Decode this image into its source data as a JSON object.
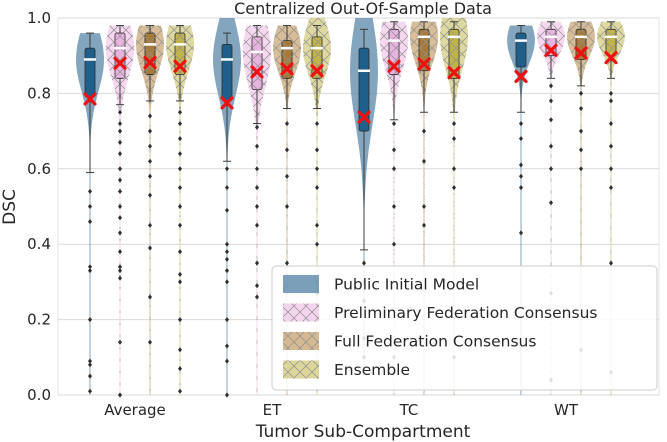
{
  "chart_data": {
    "type": "violin",
    "title": "Centralized Out-Of-Sample Data",
    "xlabel": "Tumor Sub-Compartment",
    "ylabel": "DSC",
    "ylim": [
      0.0,
      1.0
    ],
    "yticks": [
      "0.0",
      "0.2",
      "0.4",
      "0.6",
      "0.8",
      "1.0"
    ],
    "categories": [
      "Average",
      "ET",
      "TC",
      "WT"
    ],
    "grid": true,
    "legend_position": "lower-right",
    "series": [
      {
        "name": "Public Initial Model",
        "color": "#1f5f8b",
        "violin_color": "#5b87a8",
        "hatch": "none",
        "q1": [
          0.79,
          0.78,
          0.7,
          0.87
        ],
        "q3": [
          0.92,
          0.93,
          0.92,
          0.96
        ],
        "median": [
          0.89,
          0.89,
          0.86,
          0.94
        ],
        "mean": [
          0.785,
          0.775,
          0.737,
          0.845
        ],
        "whisker_low": [
          0.59,
          0.62,
          0.385,
          0.75
        ],
        "whisker_high": [
          0.96,
          0.96,
          0.97,
          0.98
        ],
        "range": [
          [
            0.0,
            0.96
          ],
          [
            0.0,
            1.0
          ],
          [
            0.05,
            1.0
          ],
          [
            0.0,
            0.98
          ]
        ],
        "outliers": [
          [
            0.54,
            0.5,
            0.46,
            0.34,
            0.33,
            0.2,
            0.09,
            0.08,
            0.05,
            0.01
          ],
          [
            0.6,
            0.55,
            0.49,
            0.4,
            0.38,
            0.36,
            0.33,
            0.3,
            0.2,
            0.13,
            0.09,
            0.0
          ],
          [
            0.35,
            0.3,
            0.25,
            0.15,
            0.1
          ],
          [
            0.72,
            0.68,
            0.61,
            0.58,
            0.55,
            0.43
          ]
        ]
      },
      {
        "name": "Preliminary Federation Consensus",
        "color": "#e8b3e0",
        "violin_color": "#f2cbe9",
        "hatch": "x",
        "q1": [
          0.84,
          0.81,
          0.85,
          0.9
        ],
        "q3": [
          0.96,
          0.95,
          0.97,
          0.97
        ],
        "median": [
          0.92,
          0.91,
          0.94,
          0.95
        ],
        "mean": [
          0.88,
          0.857,
          0.872,
          0.914
        ],
        "whisker_low": [
          0.77,
          0.72,
          0.73,
          0.84
        ],
        "whisker_high": [
          0.98,
          0.98,
          0.99,
          0.99
        ],
        "range": [
          [
            0.0,
            0.98
          ],
          [
            0.0,
            0.98
          ],
          [
            0.0,
            0.99
          ],
          [
            0.0,
            0.99
          ]
        ],
        "outliers": [
          [
            0.75,
            0.72,
            0.7,
            0.67,
            0.64,
            0.6,
            0.57,
            0.54,
            0.5,
            0.47,
            0.43,
            0.38,
            0.34,
            0.33,
            0.31,
            0.14,
            0.0
          ],
          [
            0.71,
            0.66,
            0.6,
            0.55,
            0.5,
            0.45,
            0.35,
            0.29,
            0.26
          ],
          [
            0.72,
            0.65,
            0.6,
            0.5,
            0.4,
            0.1
          ],
          [
            0.82,
            0.78,
            0.73,
            0.66,
            0.6,
            0.51,
            0.27,
            0.04
          ]
        ]
      },
      {
        "name": "Full Federation Consensus",
        "color": "#a67a3a",
        "violin_color": "#c9a877",
        "hatch": "x",
        "q1": [
          0.85,
          0.84,
          0.86,
          0.89
        ],
        "q3": [
          0.96,
          0.94,
          0.97,
          0.97
        ],
        "median": [
          0.93,
          0.92,
          0.95,
          0.95
        ],
        "mean": [
          0.882,
          0.865,
          0.878,
          0.907
        ],
        "whisker_low": [
          0.78,
          0.76,
          0.75,
          0.82
        ],
        "whisker_high": [
          0.98,
          0.98,
          0.99,
          0.99
        ],
        "range": [
          [
            0.0,
            0.98
          ],
          [
            0.0,
            0.98
          ],
          [
            0.0,
            0.99
          ],
          [
            0.0,
            0.99
          ]
        ],
        "outliers": [
          [
            0.74,
            0.7,
            0.66,
            0.62,
            0.58,
            0.53,
            0.45,
            0.39,
            0.26,
            0.14
          ],
          [
            0.72,
            0.65,
            0.58,
            0.5,
            0.35,
            0.29,
            0.05
          ],
          [
            0.7,
            0.62,
            0.5,
            0.45
          ],
          [
            0.8,
            0.76,
            0.7,
            0.65,
            0.6,
            0.12
          ]
        ]
      },
      {
        "name": "Ensemble",
        "color": "#c2b44a",
        "violin_color": "#d3cc82",
        "hatch": "x",
        "q1": [
          0.85,
          0.84,
          0.84,
          0.9
        ],
        "q3": [
          0.96,
          0.95,
          0.97,
          0.97
        ],
        "median": [
          0.93,
          0.92,
          0.95,
          0.95
        ],
        "mean": [
          0.872,
          0.86,
          0.855,
          0.895
        ],
        "whisker_low": [
          0.78,
          0.76,
          0.75,
          0.84
        ],
        "whisker_high": [
          0.98,
          0.98,
          0.99,
          0.99
        ],
        "range": [
          [
            0.0,
            0.98
          ],
          [
            0.0,
            1.0
          ],
          [
            0.0,
            1.0
          ],
          [
            0.0,
            0.99
          ]
        ],
        "outliers": [
          [
            0.75,
            0.72,
            0.68,
            0.64,
            0.6,
            0.55,
            0.5,
            0.45,
            0.38,
            0.32,
            0.3,
            0.2,
            0.12,
            0.07,
            0.01
          ],
          [
            0.72,
            0.65,
            0.6,
            0.55,
            0.45,
            0.4,
            0.3,
            0.27
          ],
          [
            0.72,
            0.68,
            0.6,
            0.55,
            0.1
          ],
          [
            0.8,
            0.78,
            0.72,
            0.66,
            0.6,
            0.55,
            0.35,
            0.06
          ]
        ]
      }
    ]
  }
}
